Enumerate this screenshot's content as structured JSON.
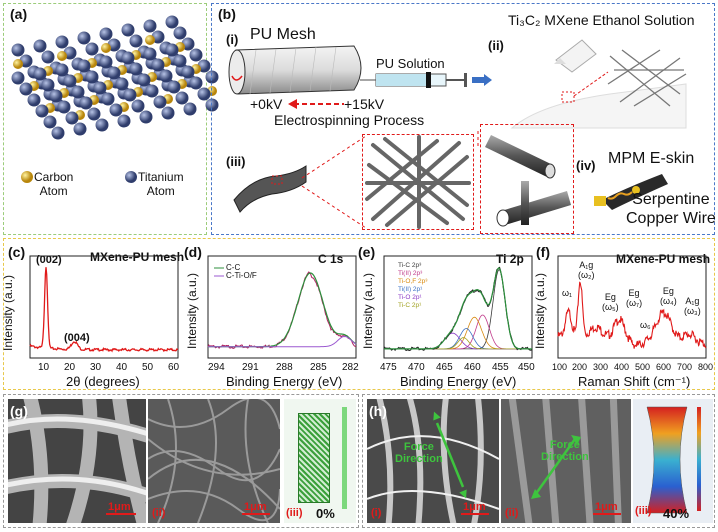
{
  "panel_a": {
    "label": "(a)",
    "legend": [
      {
        "name": "Carbon\nAtom",
        "color": "#d8b02a"
      },
      {
        "name": "Titanium\nAtom",
        "color": "#4a5a8c"
      }
    ]
  },
  "panel_b": {
    "label": "(b)",
    "title_ii": "Ti₃C₂ MXene Ethanol Solution",
    "i": {
      "tag": "(i)",
      "mesh": "PU Mesh",
      "solution": "PU Solution",
      "v0": "+0kV",
      "v15": "+15kV",
      "process": "Electrospinning Process"
    },
    "ii": {
      "tag": "(ii)"
    },
    "iii": {
      "tag": "(iii)"
    },
    "iv": {
      "tag": "(iv)",
      "title": "MPM E-skin",
      "wire": "Serpentine\nCopper Wire"
    }
  },
  "panel_c": {
    "label": "(c)",
    "title": "MXene-PU mesh",
    "ylabel": "Intensity (a.u.)",
    "xlabel": "2θ (degrees)",
    "peaks": [
      "(002)",
      "(004)"
    ],
    "ticks": [
      "10",
      "20",
      "30",
      "40",
      "50",
      "60"
    ]
  },
  "panel_d": {
    "label": "(d)",
    "title": "C 1s",
    "ylabel": "Intensity (a.u.)",
    "xlabel": "Binding Energy (eV)",
    "legend": [
      "C-C",
      "C-Ti-O/F"
    ],
    "ticks": [
      "294",
      "291",
      "288",
      "285",
      "282"
    ]
  },
  "panel_e": {
    "label": "(e)",
    "title": "Ti 2p",
    "ylabel": "Intensity (a.u.)",
    "xlabel": "Binding Energy (eV)",
    "legend": [
      "Ti-C 2p³",
      "Ti(II) 2p³",
      "Ti-O,F 2p³",
      "Ti(II) 2p¹",
      "Ti-O 2p¹",
      "Ti-C 2p¹"
    ],
    "ticks": [
      "475",
      "470",
      "465",
      "460",
      "455",
      "450"
    ]
  },
  "panel_f": {
    "label": "(f)",
    "title": "MXene-PU mesh",
    "ylabel": "Intensity (a.u.)",
    "xlabel": "Raman Shift (cm⁻¹)",
    "modes": [
      "ω₁",
      "A₁g\n(ω₂)",
      "Eg\n(ω₅)",
      "Eg\n(ω₇)",
      "ω₆",
      "Eg\n(ω₄)",
      "A₁g\n(ω₃)"
    ],
    "ticks": [
      "100",
      "200",
      "300",
      "400",
      "500",
      "600",
      "700",
      "800"
    ]
  },
  "panel_g": {
    "label": "(g)",
    "scale1": "1μm",
    "scale2": "1μm",
    "tag_ii": "(ii)",
    "tag_iii": "(iii)",
    "strain": "0%"
  },
  "panel_h": {
    "label": "(h)",
    "force1": "Force\nDirection",
    "force2": "Force\nDirection",
    "scale1": "1μm",
    "scale2": "1μm",
    "tag_i": "(i)",
    "tag_ii": "(ii)",
    "tag_iii": "(iii)",
    "strain": "40%"
  },
  "colors": {
    "red": "#e01a1a",
    "green": "#3ec43e",
    "curve_green": "#2c8f3c",
    "curve_red": "#d21c1c"
  }
}
